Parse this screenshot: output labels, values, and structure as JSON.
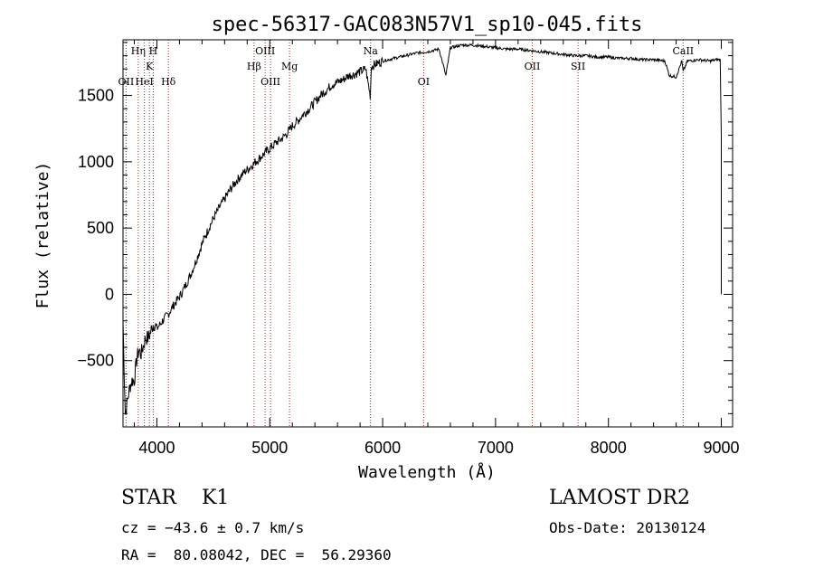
{
  "chart_data": {
    "type": "line",
    "title": "spec-56317-GAC083N57V1_sp10-045.fits",
    "xlabel": "Wavelength (Å)",
    "ylabel": "Flux (relative)",
    "xlim": [
      3700,
      9100
    ],
    "ylim": [
      -1000,
      1920
    ],
    "xticks": [
      4000,
      5000,
      6000,
      7000,
      8000,
      9000
    ],
    "yticks": [
      -500,
      0,
      500,
      1000,
      1500
    ],
    "grid": false,
    "series": [
      {
        "x": [
          3700,
          3720,
          3740,
          3760,
          3780,
          3800,
          3820,
          3840,
          3860,
          3880,
          3900,
          3920,
          3940,
          3960,
          3980,
          4000,
          4050,
          4100,
          4150,
          4200,
          4250,
          4300,
          4350,
          4400,
          4450,
          4500,
          4550,
          4600,
          4650,
          4700,
          4750,
          4800,
          4850,
          4900,
          4950,
          5000,
          5050,
          5100,
          5150,
          5200,
          5250,
          5300,
          5350,
          5400,
          5450,
          5500,
          5550,
          5600,
          5650,
          5700,
          5750,
          5800,
          5850,
          5890,
          5900,
          5950,
          6000,
          6100,
          6200,
          6300,
          6400,
          6500,
          6560,
          6600,
          6700,
          6800,
          6900,
          7000,
          7100,
          7200,
          7300,
          7400,
          7500,
          7600,
          7700,
          7800,
          7900,
          8000,
          8100,
          8200,
          8300,
          8400,
          8500,
          8540,
          8600,
          8650,
          8662,
          8700,
          8800,
          8900,
          8960,
          8990,
          9000
        ],
        "y": [
          -200,
          -900,
          -800,
          -700,
          -650,
          -650,
          -500,
          -420,
          -450,
          -390,
          -330,
          -330,
          -300,
          -240,
          -220,
          -260,
          -200,
          -150,
          -80,
          -20,
          60,
          150,
          260,
          380,
          480,
          570,
          650,
          720,
          790,
          850,
          900,
          940,
          980,
          1020,
          1060,
          1100,
          1140,
          1170,
          1210,
          1270,
          1310,
          1360,
          1400,
          1450,
          1500,
          1540,
          1580,
          1600,
          1620,
          1650,
          1660,
          1680,
          1700,
          1500,
          1720,
          1740,
          1760,
          1780,
          1800,
          1820,
          1830,
          1850,
          1650,
          1860,
          1880,
          1880,
          1870,
          1860,
          1850,
          1850,
          1840,
          1830,
          1820,
          1810,
          1800,
          1800,
          1790,
          1790,
          1780,
          1780,
          1770,
          1770,
          1760,
          1650,
          1640,
          1760,
          1680,
          1760,
          1770,
          1760,
          1770,
          1770,
          1200
        ]
      }
    ],
    "lines": [
      {
        "label": "OII",
        "x": 3727,
        "row": 3
      },
      {
        "label": "Hη",
        "x": 3835,
        "row": 1
      },
      {
        "label": "HeI",
        "x": 3889,
        "row": 3
      },
      {
        "label": "K",
        "x": 3934,
        "row": 2
      },
      {
        "label": "H",
        "x": 3968,
        "row": 1
      },
      {
        "label": "Hδ",
        "x": 4102,
        "row": 3
      },
      {
        "label": "Hβ",
        "x": 4861,
        "row": 2
      },
      {
        "label": "OIII",
        "x": 4959,
        "row": 1
      },
      {
        "label": "OIII",
        "x": 5007,
        "row": 3
      },
      {
        "label": "Mg",
        "x": 5175,
        "row": 2
      },
      {
        "label": "Na",
        "x": 5893,
        "row": 1
      },
      {
        "label": "OI",
        "x": 6363,
        "row": 3
      },
      {
        "label": "OII",
        "x": 7325,
        "row": 2
      },
      {
        "label": "SII",
        "x": 7731,
        "row": 2
      },
      {
        "label": "CaII",
        "x": 8662,
        "row": 1
      }
    ]
  },
  "info": {
    "class": "STAR    K1",
    "survey": "LAMOST DR2",
    "cz": "cz = −43.6 ± 0.7 km/s",
    "obs_date": "Obs-Date: 20130124",
    "radec": "RA =  80.08042, DEC =  56.29360"
  },
  "colors": {
    "line_marker": "#a0281e",
    "spectrum": "#000000"
  }
}
